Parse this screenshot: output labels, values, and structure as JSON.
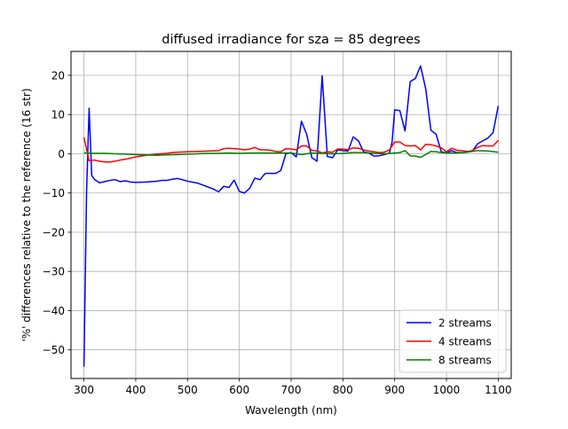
{
  "chart_data": {
    "type": "line",
    "title": "diffused irradiance for sza = 85 degrees",
    "xlabel": "Wavelength (nm)",
    "ylabel": "'%' differences relative to the reference (16 str)",
    "xlim": [
      275,
      1125
    ],
    "ylim": [
      -57.3,
      26.1
    ],
    "x_ticks": [
      300,
      400,
      500,
      600,
      700,
      800,
      900,
      1000,
      1100
    ],
    "y_ticks": [
      -50,
      -40,
      -30,
      -20,
      -10,
      0,
      10,
      20
    ],
    "grid": true,
    "legend_position": "lower-right",
    "series": [
      {
        "name": "2 streams",
        "color": "#0000ff",
        "points": [
          [
            300,
            -54.3
          ],
          [
            305,
            -10
          ],
          [
            310,
            11.6
          ],
          [
            315,
            -5.5
          ],
          [
            320,
            -6.5
          ],
          [
            330,
            -7.4
          ],
          [
            340,
            -7.1
          ],
          [
            350,
            -6.8
          ],
          [
            360,
            -6.6
          ],
          [
            370,
            -7.1
          ],
          [
            380,
            -6.9
          ],
          [
            390,
            -7.2
          ],
          [
            400,
            -7.3
          ],
          [
            420,
            -7.2
          ],
          [
            440,
            -7.0
          ],
          [
            450,
            -6.8
          ],
          [
            460,
            -6.8
          ],
          [
            470,
            -6.5
          ],
          [
            480,
            -6.3
          ],
          [
            490,
            -6.6
          ],
          [
            500,
            -7.0
          ],
          [
            520,
            -7.5
          ],
          [
            540,
            -8.5
          ],
          [
            550,
            -9.0
          ],
          [
            560,
            -9.7
          ],
          [
            570,
            -8.3
          ],
          [
            580,
            -8.6
          ],
          [
            590,
            -6.7
          ],
          [
            600,
            -9.6
          ],
          [
            610,
            -10.0
          ],
          [
            620,
            -8.8
          ],
          [
            630,
            -6.2
          ],
          [
            640,
            -6.6
          ],
          [
            650,
            -5.0
          ],
          [
            660,
            -5.0
          ],
          [
            670,
            -5.0
          ],
          [
            680,
            -4.3
          ],
          [
            690,
            0.0
          ],
          [
            700,
            0.3
          ],
          [
            710,
            -0.8
          ],
          [
            720,
            8.3
          ],
          [
            730,
            5.0
          ],
          [
            740,
            -1.0
          ],
          [
            750,
            -1.9
          ],
          [
            760,
            19.9
          ],
          [
            770,
            -0.7
          ],
          [
            780,
            -1.0
          ],
          [
            790,
            1.0
          ],
          [
            800,
            0.8
          ],
          [
            810,
            0.7
          ],
          [
            820,
            4.3
          ],
          [
            830,
            3.3
          ],
          [
            840,
            0.5
          ],
          [
            850,
            0.2
          ],
          [
            860,
            -0.6
          ],
          [
            870,
            -0.5
          ],
          [
            880,
            -0.2
          ],
          [
            890,
            0.2
          ],
          [
            895,
            3.0
          ],
          [
            900,
            11.2
          ],
          [
            910,
            11.0
          ],
          [
            920,
            5.8
          ],
          [
            930,
            18.4
          ],
          [
            940,
            19.2
          ],
          [
            950,
            22.4
          ],
          [
            960,
            16.5
          ],
          [
            970,
            6.0
          ],
          [
            980,
            5.0
          ],
          [
            990,
            0.5
          ],
          [
            1000,
            0.2
          ],
          [
            1010,
            0.8
          ],
          [
            1020,
            0.3
          ],
          [
            1030,
            0.3
          ],
          [
            1040,
            0.4
          ],
          [
            1050,
            0.7
          ],
          [
            1060,
            2.5
          ],
          [
            1070,
            3.3
          ],
          [
            1080,
            4.0
          ],
          [
            1090,
            5.4
          ],
          [
            1100,
            12.2
          ]
        ]
      },
      {
        "name": "4 streams",
        "color": "#ff0000",
        "points": [
          [
            300,
            4.2
          ],
          [
            310,
            -1.8
          ],
          [
            320,
            -1.6
          ],
          [
            330,
            -1.9
          ],
          [
            340,
            -2.1
          ],
          [
            350,
            -2.1
          ],
          [
            360,
            -1.9
          ],
          [
            370,
            -1.6
          ],
          [
            380,
            -1.4
          ],
          [
            390,
            -1.1
          ],
          [
            400,
            -0.8
          ],
          [
            420,
            -0.4
          ],
          [
            440,
            -0.1
          ],
          [
            460,
            0.1
          ],
          [
            470,
            0.3
          ],
          [
            480,
            0.4
          ],
          [
            500,
            0.5
          ],
          [
            520,
            0.6
          ],
          [
            540,
            0.7
          ],
          [
            560,
            0.8
          ],
          [
            570,
            1.3
          ],
          [
            580,
            1.4
          ],
          [
            600,
            1.2
          ],
          [
            610,
            1.0
          ],
          [
            620,
            1.2
          ],
          [
            630,
            1.6
          ],
          [
            640,
            1.0
          ],
          [
            650,
            1.0
          ],
          [
            660,
            0.9
          ],
          [
            670,
            0.6
          ],
          [
            680,
            0.5
          ],
          [
            690,
            1.3
          ],
          [
            700,
            1.2
          ],
          [
            710,
            1.0
          ],
          [
            720,
            2.0
          ],
          [
            730,
            2.0
          ],
          [
            740,
            0.9
          ],
          [
            750,
            0.7
          ],
          [
            760,
            0.2
          ],
          [
            770,
            0.5
          ],
          [
            780,
            0.4
          ],
          [
            790,
            1.2
          ],
          [
            800,
            1.2
          ],
          [
            810,
            1.0
          ],
          [
            820,
            1.5
          ],
          [
            830,
            1.4
          ],
          [
            840,
            1.0
          ],
          [
            850,
            0.7
          ],
          [
            860,
            0.5
          ],
          [
            870,
            0.3
          ],
          [
            880,
            0.4
          ],
          [
            890,
            1.0
          ],
          [
            900,
            3.0
          ],
          [
            910,
            3.0
          ],
          [
            920,
            2.1
          ],
          [
            930,
            2.0
          ],
          [
            940,
            2.1
          ],
          [
            950,
            1.0
          ],
          [
            960,
            2.4
          ],
          [
            970,
            2.3
          ],
          [
            980,
            2.0
          ],
          [
            990,
            1.5
          ],
          [
            1000,
            0.5
          ],
          [
            1010,
            1.4
          ],
          [
            1020,
            0.9
          ],
          [
            1030,
            0.8
          ],
          [
            1040,
            0.6
          ],
          [
            1050,
            0.8
          ],
          [
            1060,
            1.6
          ],
          [
            1070,
            2.1
          ],
          [
            1080,
            2.0
          ],
          [
            1090,
            2.0
          ],
          [
            1100,
            3.4
          ]
        ]
      },
      {
        "name": "8 streams",
        "color": "#008000",
        "points": [
          [
            300,
            0.2
          ],
          [
            320,
            0.1
          ],
          [
            340,
            0.1
          ],
          [
            360,
            0.0
          ],
          [
            380,
            -0.1
          ],
          [
            400,
            -0.2
          ],
          [
            420,
            -0.3
          ],
          [
            440,
            -0.4
          ],
          [
            460,
            -0.3
          ],
          [
            480,
            -0.2
          ],
          [
            500,
            -0.1
          ],
          [
            520,
            0.0
          ],
          [
            540,
            0.1
          ],
          [
            560,
            0.1
          ],
          [
            580,
            0.2
          ],
          [
            600,
            0.1
          ],
          [
            620,
            0.2
          ],
          [
            640,
            0.2
          ],
          [
            660,
            0.2
          ],
          [
            680,
            0.2
          ],
          [
            700,
            0.2
          ],
          [
            720,
            -0.2
          ],
          [
            740,
            0.2
          ],
          [
            760,
            0.1
          ],
          [
            780,
            0.0
          ],
          [
            800,
            0.1
          ],
          [
            820,
            0.3
          ],
          [
            840,
            0.3
          ],
          [
            860,
            0.1
          ],
          [
            880,
            0.0
          ],
          [
            900,
            0.2
          ],
          [
            910,
            0.3
          ],
          [
            920,
            0.8
          ],
          [
            930,
            -0.5
          ],
          [
            940,
            -0.6
          ],
          [
            950,
            -0.9
          ],
          [
            960,
            -0.2
          ],
          [
            970,
            0.6
          ],
          [
            980,
            0.5
          ],
          [
            990,
            0.3
          ],
          [
            1000,
            0.2
          ],
          [
            1020,
            0.2
          ],
          [
            1040,
            0.4
          ],
          [
            1060,
            0.8
          ],
          [
            1080,
            0.7
          ],
          [
            1100,
            0.4
          ]
        ]
      }
    ]
  }
}
